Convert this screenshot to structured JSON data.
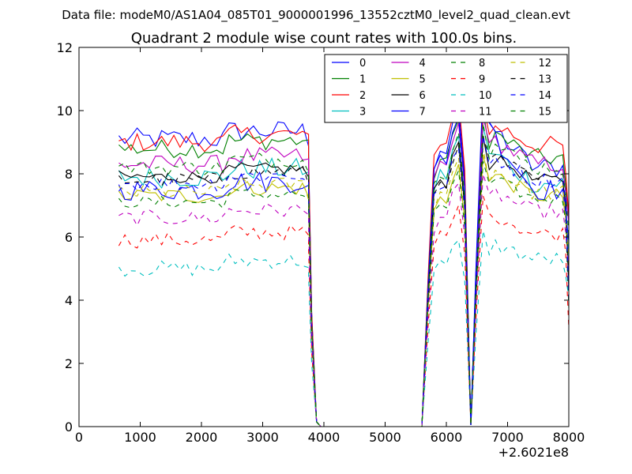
{
  "figure": {
    "suptitle": "Data file: modeM0/AS1A04_085T01_9000001996_13552cztM0_level2_quad_clean.evt"
  },
  "chart_data": {
    "type": "line",
    "title": "Quadrant 2 module wise count rates with 100.0s bins.",
    "xlabel": "",
    "ylabel": "",
    "x_offset_label": "+2.6021e8",
    "xlim": [
      0,
      8000
    ],
    "ylim": [
      0,
      12
    ],
    "xticks": [
      0,
      1000,
      2000,
      3000,
      4000,
      5000,
      6000,
      7000,
      8000
    ],
    "xtick_labels": [
      "0",
      "1000",
      "2000",
      "3000",
      "4000",
      "5000",
      "6000",
      "7000",
      "8000"
    ],
    "yticks": [
      0,
      2,
      4,
      6,
      8,
      10,
      12
    ],
    "ytick_labels": [
      "0",
      "2",
      "4",
      "6",
      "8",
      "10",
      "12"
    ],
    "grid": false,
    "legend_position": "upper-right",
    "legend_columns": 4,
    "segments": [
      {
        "x_start": 650,
        "x_step": 100,
        "n": 32,
        "drop_to_zero_at": 3880,
        "zero_until": 5600
      },
      {
        "rise_x": [
          5600,
          5700,
          5800,
          5900,
          6000,
          6100,
          6200,
          6300
        ],
        "dip_x": 6400
      },
      {
        "x_start": 6500,
        "x_step": 100,
        "n": 16,
        "end_x": 8000
      }
    ],
    "series": [
      {
        "name": "0",
        "color": "#0000ff",
        "style": "solid",
        "level": 9.1,
        "noise": 0.35,
        "peak1": 10.1,
        "peak2": 10.5,
        "post": 8.2
      },
      {
        "name": "1",
        "color": "#008000",
        "style": "solid",
        "level": 8.8,
        "noise": 0.3,
        "peak1": 9.7,
        "peak2": 10.0,
        "post": 8.5
      },
      {
        "name": "2",
        "color": "#ff0000",
        "style": "solid",
        "level": 9.0,
        "noise": 0.3,
        "peak1": 10.4,
        "peak2": 10.2,
        "post": 8.9
      },
      {
        "name": "3",
        "color": "#00bfbf",
        "style": "solid",
        "level": 7.9,
        "noise": 0.35,
        "peak1": 9.2,
        "peak2": 9.5,
        "post": 7.7
      },
      {
        "name": "4",
        "color": "#bf00bf",
        "style": "solid",
        "level": 8.3,
        "noise": 0.3,
        "peak1": 9.6,
        "peak2": 9.8,
        "post": 8.3
      },
      {
        "name": "5",
        "color": "#bfbf00",
        "style": "solid",
        "level": 7.3,
        "noise": 0.25,
        "peak1": 8.3,
        "peak2": 8.6,
        "post": 7.3
      },
      {
        "name": "6",
        "color": "#000000",
        "style": "solid",
        "level": 7.9,
        "noise": 0.2,
        "peak1": 9.0,
        "peak2": 9.2,
        "post": 7.8
      },
      {
        "name": "7",
        "color": "#0000ff",
        "style": "solid",
        "level": 7.5,
        "noise": 0.35,
        "peak1": 9.8,
        "peak2": 10.8,
        "post": 7.5
      },
      {
        "name": "8",
        "color": "#008000",
        "style": "dashed",
        "level": 7.1,
        "noise": 0.2,
        "peak1": 8.1,
        "peak2": 8.4,
        "post": 7.2
      },
      {
        "name": "9",
        "color": "#ff0000",
        "style": "dashed",
        "level": 5.9,
        "noise": 0.25,
        "peak1": 7.0,
        "peak2": 7.3,
        "post": 6.1
      },
      {
        "name": "10",
        "color": "#00bfbf",
        "style": "dashed",
        "level": 5.0,
        "noise": 0.25,
        "peak1": 5.9,
        "peak2": 6.2,
        "post": 5.3
      },
      {
        "name": "11",
        "color": "#bf00bf",
        "style": "dashed",
        "level": 6.6,
        "noise": 0.25,
        "peak1": 7.7,
        "peak2": 8.0,
        "post": 6.8
      },
      {
        "name": "12",
        "color": "#bfbf00",
        "style": "dashed",
        "level": 7.4,
        "noise": 0.25,
        "peak1": 8.5,
        "peak2": 8.8,
        "post": 7.4
      },
      {
        "name": "13",
        "color": "#000000",
        "style": "dashed",
        "level": 7.8,
        "noise": 0.25,
        "peak1": 8.9,
        "peak2": 9.2,
        "post": 7.8
      },
      {
        "name": "14",
        "color": "#0000ff",
        "style": "dashed",
        "level": 7.7,
        "noise": 0.25,
        "peak1": 8.8,
        "peak2": 9.2,
        "post": 7.8
      },
      {
        "name": "15",
        "color": "#008000",
        "style": "dashed",
        "level": 8.2,
        "noise": 0.25,
        "peak1": 9.3,
        "peak2": 9.6,
        "post": 8.2
      }
    ]
  }
}
